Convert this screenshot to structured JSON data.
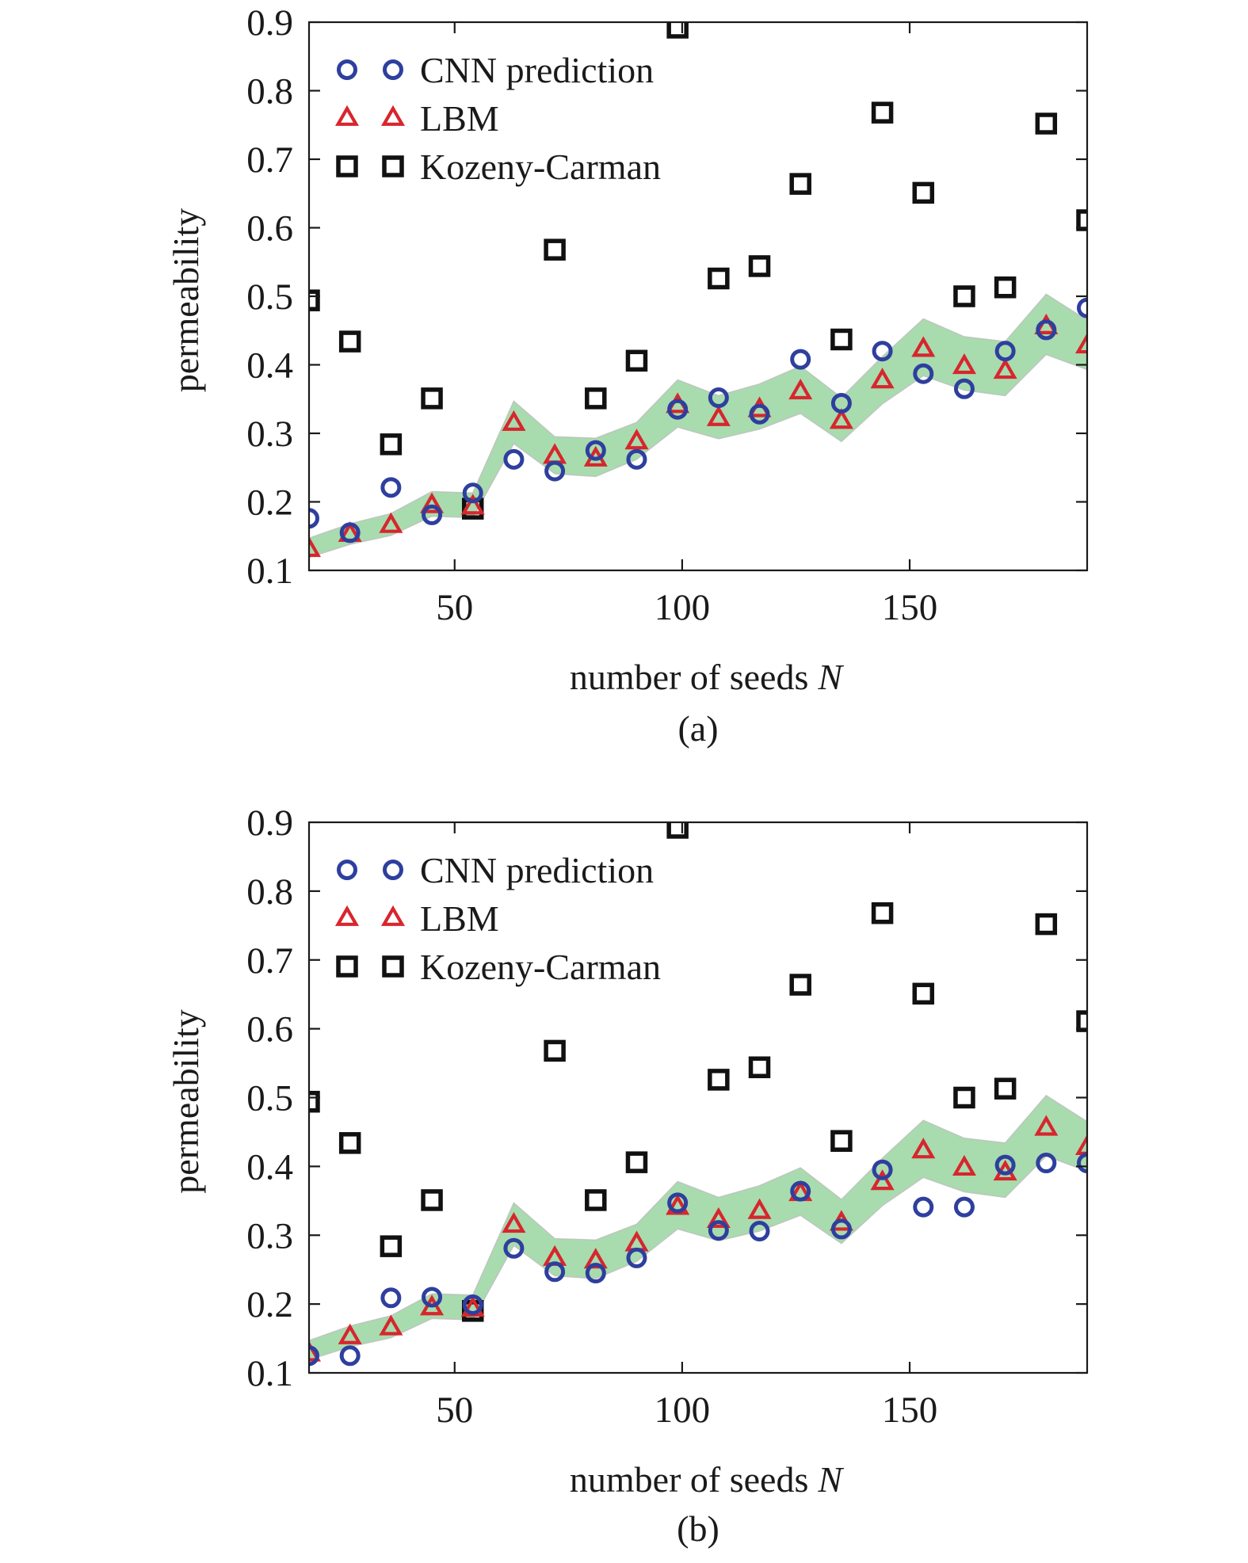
{
  "chart_data": [
    {
      "type": "scatter",
      "caption": "(a)",
      "xlabel": "number of seeds",
      "xlabel_symbol": "N",
      "ylabel": "permeability",
      "xlim": [
        18,
        189
      ],
      "ylim": [
        0.1,
        0.9
      ],
      "xticks": [
        50,
        100,
        150
      ],
      "xtick_labels": [
        "50",
        "100",
        "150"
      ],
      "yticks": [
        0.1,
        0.2,
        0.3,
        0.4,
        0.5,
        0.6,
        0.7,
        0.8,
        0.9
      ],
      "ytick_labels": [
        "0.1",
        "0.2",
        "0.3",
        "0.4",
        "0.5",
        "0.6",
        "0.7",
        "0.8",
        "0.9"
      ],
      "grid": false,
      "legend_position": "top-left",
      "x": [
        18,
        27,
        36,
        45,
        54,
        63,
        72,
        81,
        90,
        99,
        108,
        117,
        126,
        135,
        144,
        153,
        162,
        171,
        180,
        189
      ],
      "series": [
        {
          "name": "CNN prediction",
          "marker": "circle",
          "color": "#2e3f9e",
          "values": [
            0.176,
            0.155,
            0.221,
            0.181,
            0.213,
            0.262,
            0.245,
            0.275,
            0.262,
            0.335,
            0.352,
            0.328,
            0.408,
            0.344,
            0.42,
            0.387,
            0.365,
            0.42,
            0.451,
            0.483
          ]
        },
        {
          "name": "LBM",
          "marker": "triangle",
          "color": "#d7262e",
          "values": [
            0.131,
            0.153,
            0.166,
            0.195,
            0.193,
            0.315,
            0.267,
            0.263,
            0.288,
            0.341,
            0.322,
            0.335,
            0.361,
            0.318,
            0.377,
            0.423,
            0.398,
            0.391,
            0.456,
            0.428
          ]
        },
        {
          "name": "Kozeny-Carman",
          "marker": "square",
          "color": "#111111",
          "values": [
            0.494,
            0.434,
            0.284,
            0.351,
            0.19,
            null,
            0.568,
            0.351,
            0.406,
            0.892,
            0.526,
            0.544,
            0.664,
            0.437,
            0.768,
            0.651,
            0.5,
            0.513,
            0.752,
            0.611
          ]
        }
      ],
      "band": {
        "color": "#a8dcae",
        "upper": [
          0.147,
          0.168,
          0.183,
          0.215,
          0.213,
          0.347,
          0.295,
          0.293,
          0.316,
          0.378,
          0.355,
          0.372,
          0.398,
          0.352,
          0.412,
          0.467,
          0.441,
          0.434,
          0.503,
          0.465
        ],
        "lower": [
          0.119,
          0.138,
          0.151,
          0.179,
          0.177,
          0.285,
          0.241,
          0.237,
          0.262,
          0.309,
          0.292,
          0.306,
          0.329,
          0.288,
          0.343,
          0.384,
          0.363,
          0.355,
          0.415,
          0.393
        ]
      }
    },
    {
      "type": "scatter",
      "caption": "(b)",
      "xlabel": "number of seeds",
      "xlabel_symbol": "N",
      "ylabel": "permeability",
      "xlim": [
        18,
        189
      ],
      "ylim": [
        0.1,
        0.9
      ],
      "xticks": [
        50,
        100,
        150
      ],
      "xtick_labels": [
        "50",
        "100",
        "150"
      ],
      "yticks": [
        0.1,
        0.2,
        0.3,
        0.4,
        0.5,
        0.6,
        0.7,
        0.8,
        0.9
      ],
      "ytick_labels": [
        "0.1",
        "0.2",
        "0.3",
        "0.4",
        "0.5",
        "0.6",
        "0.7",
        "0.8",
        "0.9"
      ],
      "grid": false,
      "legend_position": "top-left",
      "x": [
        18,
        27,
        36,
        45,
        54,
        63,
        72,
        81,
        90,
        99,
        108,
        117,
        126,
        135,
        144,
        153,
        162,
        171,
        180,
        189
      ],
      "series": [
        {
          "name": "CNN prediction",
          "marker": "circle",
          "color": "#2e3f9e",
          "values": [
            0.125,
            0.125,
            0.209,
            0.21,
            0.199,
            0.281,
            0.247,
            0.245,
            0.267,
            0.347,
            0.307,
            0.306,
            0.364,
            0.309,
            0.395,
            0.341,
            0.341,
            0.402,
            0.405,
            0.405
          ]
        },
        {
          "name": "LBM",
          "marker": "triangle",
          "color": "#d7262e",
          "values": [
            0.128,
            0.153,
            0.166,
            0.195,
            0.193,
            0.315,
            0.267,
            0.263,
            0.288,
            0.341,
            0.322,
            0.335,
            0.361,
            0.318,
            0.377,
            0.423,
            0.398,
            0.391,
            0.456,
            0.428
          ]
        },
        {
          "name": "Kozeny-Carman",
          "marker": "square",
          "color": "#111111",
          "values": [
            0.494,
            0.434,
            0.284,
            0.351,
            0.19,
            null,
            0.568,
            0.351,
            0.406,
            0.892,
            0.526,
            0.544,
            0.664,
            0.437,
            0.768,
            0.651,
            0.5,
            0.513,
            0.752,
            0.611
          ]
        }
      ],
      "band": {
        "color": "#a8dcae",
        "upper": [
          0.147,
          0.168,
          0.183,
          0.215,
          0.213,
          0.347,
          0.295,
          0.293,
          0.316,
          0.378,
          0.355,
          0.372,
          0.398,
          0.352,
          0.412,
          0.467,
          0.441,
          0.434,
          0.503,
          0.465
        ],
        "lower": [
          0.119,
          0.138,
          0.151,
          0.179,
          0.177,
          0.285,
          0.241,
          0.237,
          0.262,
          0.309,
          0.292,
          0.306,
          0.329,
          0.288,
          0.343,
          0.384,
          0.363,
          0.355,
          0.415,
          0.393
        ]
      }
    }
  ]
}
